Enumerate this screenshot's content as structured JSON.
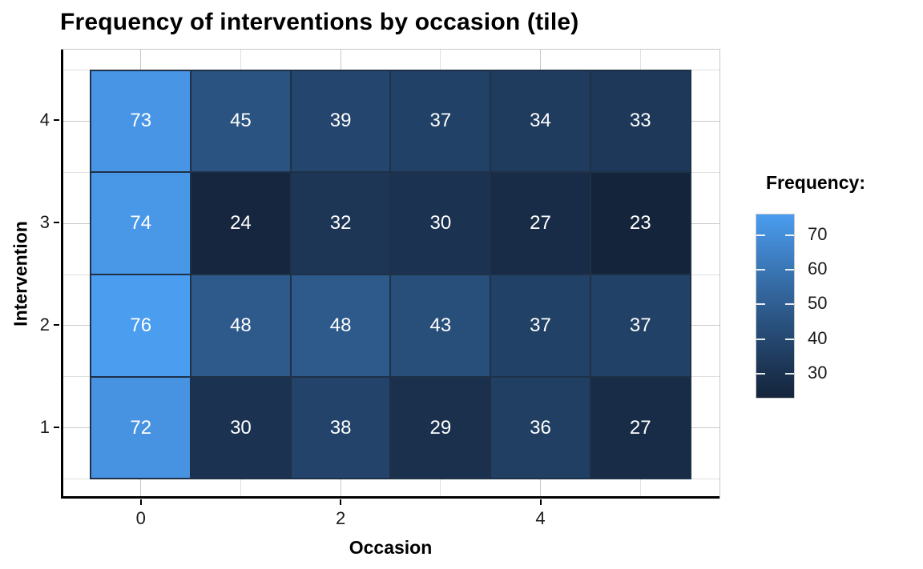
{
  "chart_data": {
    "type": "heatmap",
    "title": "Frequency of interventions by occasion (tile)",
    "xlabel": "Occasion",
    "ylabel": "Intervention",
    "x_values": [
      0,
      1,
      2,
      3,
      4,
      5
    ],
    "rows": [
      {
        "intervention": 4,
        "values": [
          73,
          45,
          39,
          37,
          34,
          33
        ]
      },
      {
        "intervention": 3,
        "values": [
          74,
          24,
          32,
          30,
          27,
          23
        ]
      },
      {
        "intervention": 2,
        "values": [
          76,
          48,
          48,
          43,
          37,
          37
        ]
      },
      {
        "intervention": 1,
        "values": [
          72,
          30,
          38,
          29,
          36,
          27
        ]
      }
    ],
    "x_axis_ticks": [
      0,
      2,
      4
    ],
    "y_axis_ticks": [
      4,
      3,
      2,
      1
    ],
    "x_minor_gridlines": [
      1,
      3,
      5
    ],
    "y_minor_gridlines": [
      0.5,
      1.5,
      2.5,
      3.5,
      4.5
    ],
    "value_min": 23,
    "value_max": 76,
    "grid": true,
    "legend_position": "right",
    "legend": {
      "title": "Frequency:",
      "ticks": [
        70,
        60,
        50,
        40,
        30
      ]
    },
    "colors": {
      "gradient_low": "#14243B",
      "gradient_high": "#4B9DF0",
      "tile_border": "#1E3147",
      "tile_text": "#FFFFFF",
      "grid_major": "#C9C9C9",
      "grid_minor": "#E0E0E0",
      "axis_line": "#000000",
      "panel_border": "#C8C8C8",
      "background": "#FFFFFF",
      "text": "#000000",
      "tick_text": "#1A1A1A"
    }
  }
}
